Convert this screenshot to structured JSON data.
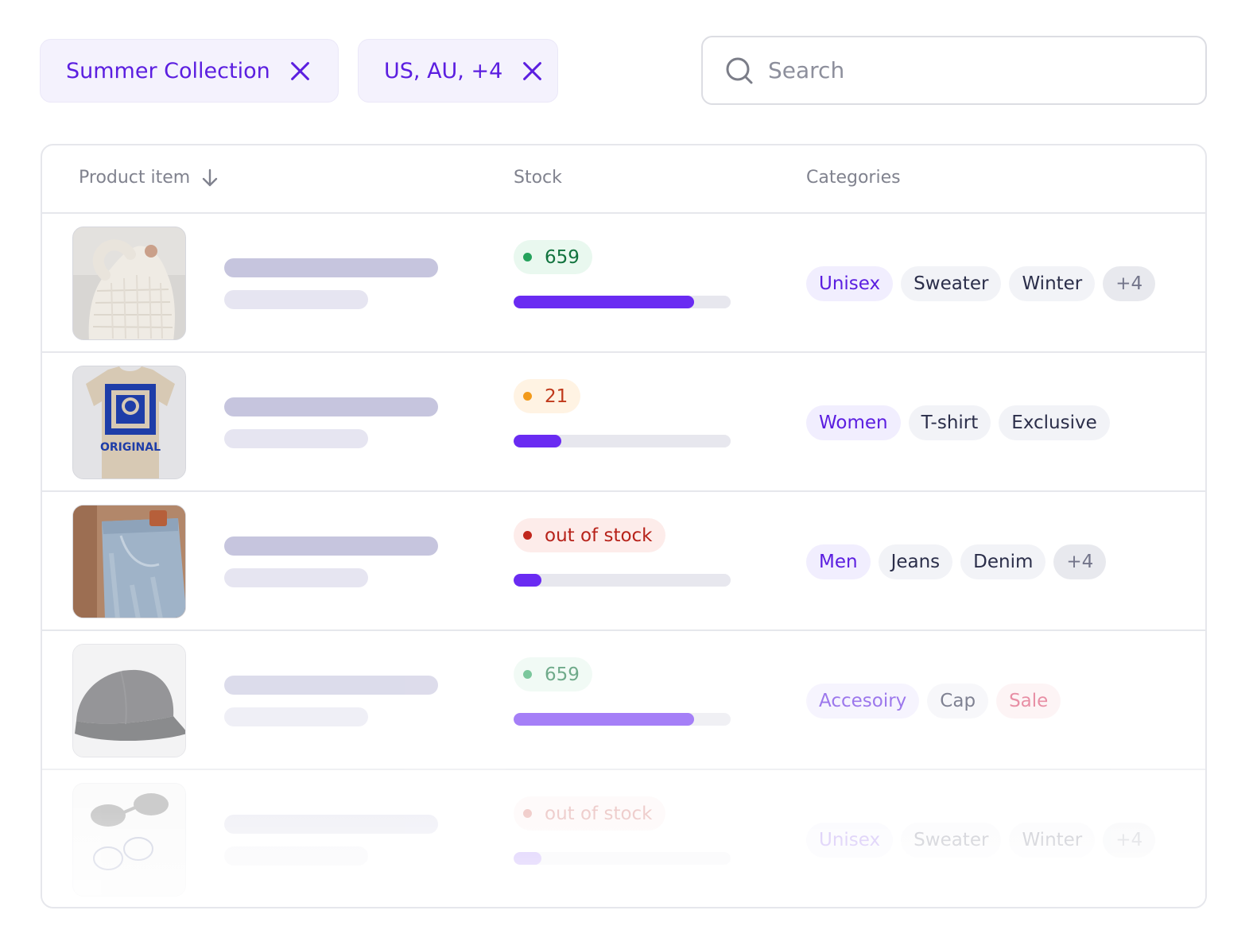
{
  "filters": [
    {
      "label": "Summer Collection"
    },
    {
      "label": "US, AU, +4"
    }
  ],
  "search": {
    "placeholder": "Search",
    "value": ""
  },
  "table": {
    "columns": {
      "product": "Product item",
      "stock": "Stock",
      "categories": "Categories"
    },
    "rows": [
      {
        "image": "sweater-photo",
        "stock_label": "659",
        "stock_status": "in-stock",
        "stock_fraction": 0.83,
        "tags": [
          {
            "label": "Unisex",
            "kind": "primary"
          },
          {
            "label": "Sweater",
            "kind": "normal"
          },
          {
            "label": "Winter",
            "kind": "normal"
          },
          {
            "label": "+4",
            "kind": "more"
          }
        ]
      },
      {
        "image": "tshirt-photo",
        "stock_label": "21",
        "stock_status": "low-stock",
        "stock_fraction": 0.22,
        "tags": [
          {
            "label": "Women",
            "kind": "primary"
          },
          {
            "label": "T-shirt",
            "kind": "normal"
          },
          {
            "label": "Exclusive",
            "kind": "normal"
          }
        ],
        "image_text": "ORIGINAL"
      },
      {
        "image": "jeans-photo",
        "stock_label": "out of stock",
        "stock_status": "out-of-stock",
        "stock_fraction": 0.13,
        "tags": [
          {
            "label": "Men",
            "kind": "primary"
          },
          {
            "label": "Jeans",
            "kind": "normal"
          },
          {
            "label": "Denim",
            "kind": "normal"
          },
          {
            "label": "+4",
            "kind": "more"
          }
        ]
      },
      {
        "image": "cap-photo",
        "stock_label": "659",
        "stock_status": "in-stock",
        "stock_fraction": 0.83,
        "tags": [
          {
            "label": "Accesoiry",
            "kind": "primary"
          },
          {
            "label": "Cap",
            "kind": "normal"
          },
          {
            "label": "Sale",
            "kind": "sale"
          }
        ]
      },
      {
        "image": "sunglasses-photo",
        "stock_label": "out of stock",
        "stock_status": "out-of-stock",
        "stock_fraction": 0.13,
        "tags": [
          {
            "label": "Unisex",
            "kind": "primary"
          },
          {
            "label": "Sweater",
            "kind": "normal"
          },
          {
            "label": "Winter",
            "kind": "normal"
          },
          {
            "label": "+4",
            "kind": "more"
          }
        ]
      }
    ]
  },
  "colors": {
    "accent": "#5b1ee0",
    "progress": "#6a2bf2",
    "in_stock": "#25a25c",
    "low_stock": "#f29a1b",
    "out_of_stock": "#c1271d"
  }
}
